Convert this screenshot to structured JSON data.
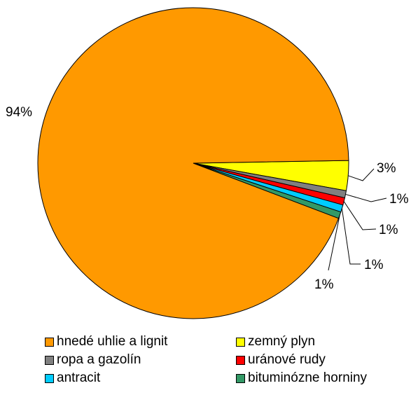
{
  "chart_data": {
    "type": "pie",
    "title": "",
    "slices": [
      {
        "name": "hnedé uhlie a lignit",
        "value": 94,
        "label": "94%",
        "color": "#FF9900"
      },
      {
        "name": "zemný plyn",
        "value": 3,
        "label": "3%",
        "color": "#FFFF00"
      },
      {
        "name": "ropa a gazolín",
        "value": 1,
        "label": "1%",
        "color": "#808080"
      },
      {
        "name": "uránové rudy",
        "value": 1,
        "label": "1%",
        "color": "#FF0000"
      },
      {
        "name": "antracit",
        "value": 1,
        "label": "1%",
        "color": "#00CCFF"
      },
      {
        "name": "bituminózne horniny",
        "value": 1,
        "label": "1%",
        "color": "#339966"
      }
    ],
    "legend_position": "bottom"
  }
}
